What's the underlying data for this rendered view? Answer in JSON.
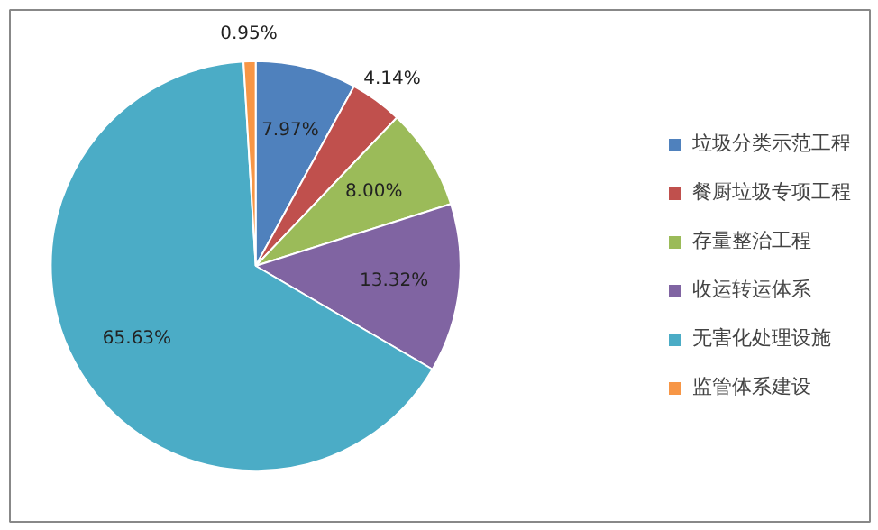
{
  "chart_data": {
    "type": "pie",
    "categories": [
      "垃圾分类示范工程",
      "餐厨垃圾专项工程",
      "存量整治工程",
      "收运转运体系",
      "无害化处理设施",
      "监管体系建设"
    ],
    "values": [
      7.97,
      4.14,
      8.0,
      13.32,
      65.63,
      0.95
    ],
    "value_labels": [
      "7.97%",
      "4.14%",
      "8.00%",
      "13.32%",
      "65.63%",
      "0.95%"
    ],
    "colors": [
      "#4f81bd",
      "#c0504d",
      "#9bbb59",
      "#8064a2",
      "#4bacc6",
      "#f79646"
    ],
    "legend": "right"
  }
}
